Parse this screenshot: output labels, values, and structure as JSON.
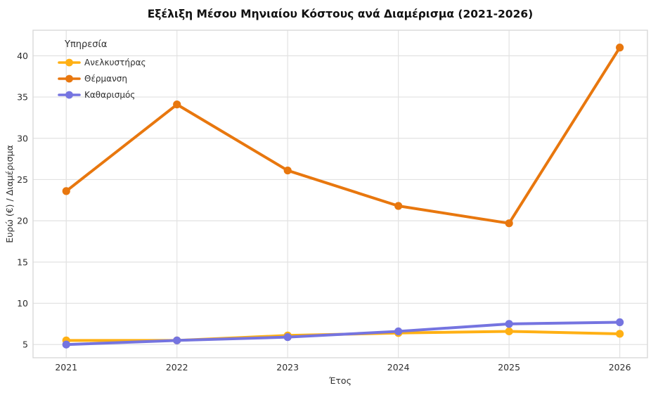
{
  "chart_data": {
    "type": "line",
    "title": "Εξέλιξη Μέσου Μηνιαίου Κόστους ανά Διαμέρισμα (2021-2026)",
    "xlabel": "Έτος",
    "ylabel": "Ευρώ (€) / Διαμέρισμα",
    "legend_title": "Υπηρεσία",
    "legend_position": "upper-left",
    "grid": true,
    "x": [
      2021,
      2022,
      2023,
      2024,
      2025,
      2026
    ],
    "series": [
      {
        "name": "Ανελκυστήρας",
        "color": "#FFB014",
        "values": [
          5.5,
          5.5,
          6.1,
          6.4,
          6.6,
          6.3
        ]
      },
      {
        "name": "Θέρμανση",
        "color": "#E8770E",
        "values": [
          23.6,
          34.1,
          26.1,
          21.8,
          19.7,
          41.0
        ]
      },
      {
        "name": "Καθαρισμός",
        "color": "#7574E0",
        "values": [
          5.0,
          5.5,
          5.9,
          6.6,
          7.5,
          7.7
        ]
      }
    ],
    "yticks": [
      5,
      10,
      15,
      20,
      25,
      30,
      35,
      40
    ],
    "ylim": [
      3.4,
      43.1
    ],
    "xlim": [
      2020.7,
      2026.25
    ],
    "colors": {
      "grid": "#E2E2E2",
      "spine": "#D9D9D9",
      "background": "#FFFFFF"
    }
  }
}
